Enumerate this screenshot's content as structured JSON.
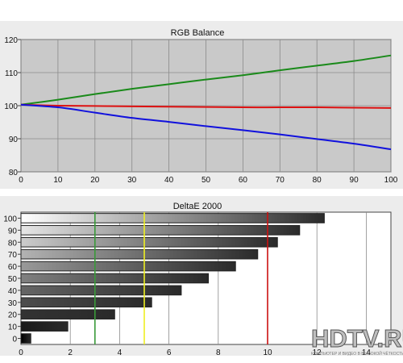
{
  "chart_data": [
    {
      "type": "line",
      "title": "RGB Balance",
      "xlabel": "",
      "ylabel": "",
      "x": [
        0,
        10,
        20,
        30,
        40,
        50,
        60,
        70,
        80,
        90,
        100
      ],
      "xlim": [
        0,
        100
      ],
      "ylim": [
        80,
        120
      ],
      "xticks": [
        0,
        10,
        20,
        30,
        40,
        50,
        60,
        70,
        80,
        90,
        100
      ],
      "yticks": [
        80,
        90,
        100,
        110,
        120
      ],
      "grid": true,
      "series": [
        {
          "color": "#1a8a1a",
          "values": [
            100.3,
            101.8,
            103.5,
            105.1,
            106.5,
            107.9,
            109.2,
            110.7,
            112.1,
            113.5,
            115.2
          ]
        },
        {
          "color": "#dd1111",
          "values": [
            100.3,
            100.0,
            99.9,
            99.8,
            99.7,
            99.6,
            99.5,
            99.5,
            99.5,
            99.4,
            99.3
          ]
        },
        {
          "color": "#1111dd",
          "values": [
            100.3,
            99.5,
            97.9,
            96.3,
            95.1,
            93.8,
            92.6,
            91.3,
            89.9,
            88.5,
            86.8
          ]
        }
      ]
    },
    {
      "type": "bar",
      "orientation": "horizontal",
      "title": "DeltaE 2000",
      "categories": [
        "0",
        "10",
        "20",
        "30",
        "40",
        "50",
        "60",
        "70",
        "80",
        "90",
        "100"
      ],
      "values": [
        0.4,
        1.9,
        3.8,
        5.3,
        6.5,
        7.6,
        8.7,
        9.6,
        10.4,
        11.3,
        12.3
      ],
      "xlim": [
        0,
        15
      ],
      "xticks": [
        0,
        2,
        4,
        6,
        8,
        10,
        12,
        14
      ],
      "grid": true,
      "reference_lines": [
        {
          "value": 3,
          "color": "#3a9a3a"
        },
        {
          "value": 5,
          "color": "#eeee22"
        },
        {
          "value": 10,
          "color": "#cc1111"
        }
      ]
    }
  ],
  "watermark": {
    "logo_text": "HDTV.RU",
    "tagline": "КОМПЬЮТЕР И ВИДЕО В ВЫСОКОЙ ЧЁТКОСТИ"
  }
}
